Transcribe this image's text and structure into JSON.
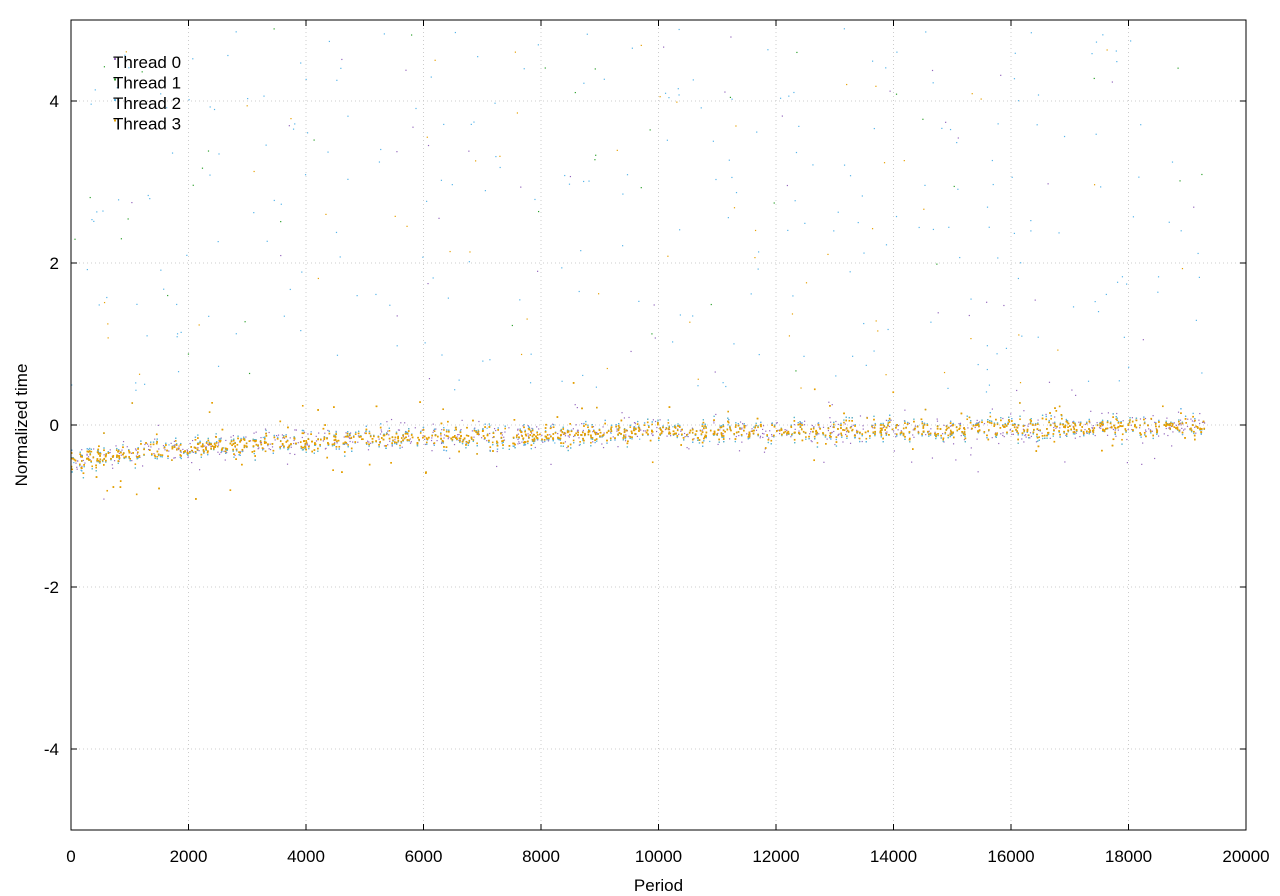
{
  "chart_data": {
    "type": "scatter",
    "title": "",
    "xlabel": "Period",
    "ylabel": "Normalized time",
    "xlim": [
      0,
      20000
    ],
    "ylim": [
      -5,
      5
    ],
    "xticks": [
      0,
      2000,
      4000,
      6000,
      8000,
      10000,
      12000,
      14000,
      16000,
      18000,
      20000
    ],
    "yticks": [
      -4,
      -2,
      0,
      2,
      4
    ],
    "xtick_labels": [
      "0",
      "2000",
      "4000",
      "6000",
      "8000",
      "10000",
      "12000",
      "14000",
      "16000",
      "18000",
      "20000"
    ],
    "ytick_labels": [
      "-4",
      "-2",
      "0",
      "2",
      "4"
    ],
    "grid": true,
    "legend_position": "top-left",
    "x_max_data": 19300,
    "series": [
      {
        "name": "Thread 0",
        "color": "#9467bd"
      },
      {
        "name": "Thread 1",
        "color": "#2ca02c"
      },
      {
        "name": "Thread 2",
        "color": "#56b4e9"
      },
      {
        "name": "Thread 3",
        "color": "#e69f00"
      }
    ],
    "trend": [
      [
        0,
        -0.45
      ],
      [
        1000,
        -0.35
      ],
      [
        2000,
        -0.28
      ],
      [
        4000,
        -0.2
      ],
      [
        6000,
        -0.15
      ],
      [
        8000,
        -0.12
      ],
      [
        10000,
        -0.08
      ],
      [
        12000,
        -0.08
      ],
      [
        14000,
        -0.05
      ],
      [
        16000,
        -0.04
      ],
      [
        18000,
        -0.02
      ],
      [
        19300,
        -0.02
      ]
    ]
  }
}
